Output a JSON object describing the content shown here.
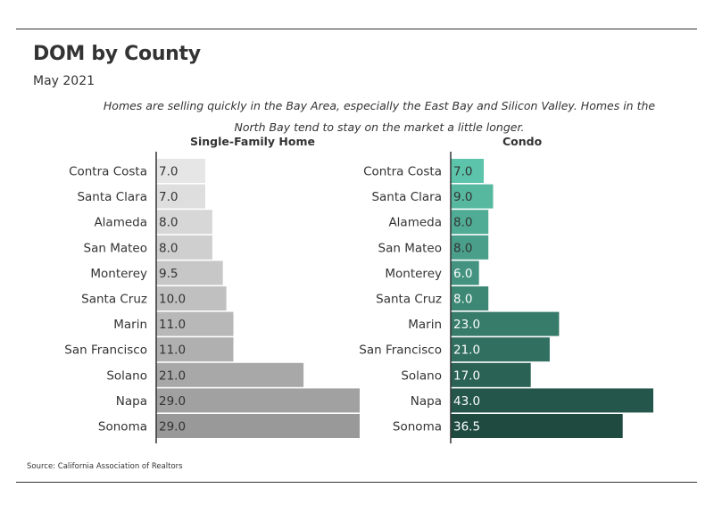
{
  "header": {
    "title": "DOM by County",
    "subtitle": "May 2021",
    "description": "Homes are selling quickly in the Bay Area, especially the East Bay and Silicon Valley. Homes in the North Bay tend to stay on the market a little longer."
  },
  "footer": {
    "source": "Source:  California Association of Realtors"
  },
  "colors": {
    "sfh_light": "#e6e6e6",
    "sfh_dark": "#999999",
    "condo_light": "#5cc4aa",
    "condo_dark": "#1e4a40",
    "axis": "#333333",
    "text": "#333333"
  },
  "chart_data": [
    {
      "type": "bar",
      "orientation": "horizontal",
      "title": "Single-Family Home",
      "categories": [
        "Contra Costa",
        "Santa Clara",
        "Alameda",
        "San Mateo",
        "Monterey",
        "Santa Cruz",
        "Marin",
        "San Francisco",
        "Solano",
        "Napa",
        "Sonoma"
      ],
      "values": [
        7.0,
        7.0,
        8.0,
        8.0,
        9.5,
        10.0,
        11.0,
        11.0,
        21.0,
        29.0,
        29.0
      ],
      "labels": [
        "7.0",
        "7.0",
        "8.0",
        "8.0",
        "9.5",
        "10.0",
        "11.0",
        "11.0",
        "21.0",
        "29.0",
        "29.0"
      ],
      "xlim": [
        0,
        29
      ],
      "grid": false
    },
    {
      "type": "bar",
      "orientation": "horizontal",
      "title": "Condo",
      "categories": [
        "Contra Costa",
        "Santa Clara",
        "Alameda",
        "San Mateo",
        "Monterey",
        "Santa Cruz",
        "Marin",
        "San Francisco",
        "Solano",
        "Napa",
        "Sonoma"
      ],
      "values": [
        7.0,
        9.0,
        8.0,
        8.0,
        6.0,
        8.0,
        23.0,
        21.0,
        17.0,
        43.0,
        36.5
      ],
      "labels": [
        "7.0",
        "9.0",
        "8.0",
        "8.0",
        "6.0",
        "8.0",
        "23.0",
        "21.0",
        "17.0",
        "43.0",
        "36.5"
      ],
      "xlim": [
        0,
        43
      ],
      "grid": false
    }
  ]
}
